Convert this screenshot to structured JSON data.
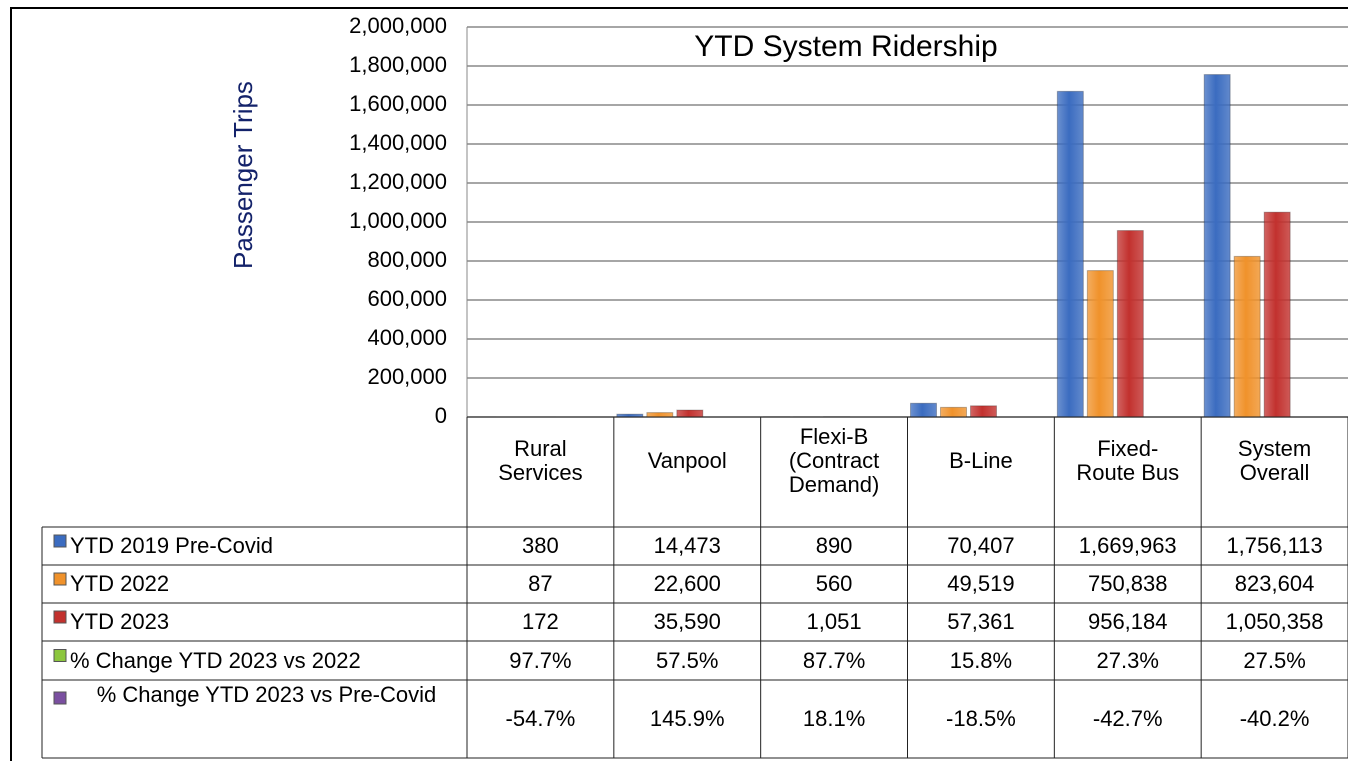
{
  "chart_data": {
    "type": "bar",
    "title": "YTD System Ridership",
    "y_label": "Passenger  Trips",
    "categories": [
      "Rural Services",
      "Vanpool",
      "Flexi-B (Contract Demand)",
      "B-Line",
      "Fixed-Route Bus",
      "System Overall"
    ],
    "series": [
      {
        "name": "YTD 2019 Pre-Covid",
        "color": "#3b6cc0",
        "values": [
          380,
          14473,
          890,
          70407,
          1669963,
          1756113
        ],
        "value_labels": [
          "380",
          "14,473",
          "890",
          "70,407",
          "1,669,963",
          "1,756,113"
        ]
      },
      {
        "name": "YTD 2022",
        "color": "#f0922b",
        "values": [
          87,
          22600,
          560,
          49519,
          750838,
          823604
        ],
        "value_labels": [
          "87",
          "22,600",
          "560",
          "49,519",
          "750,838",
          "823,604"
        ]
      },
      {
        "name": "YTD 2023",
        "color": "#c2312e",
        "values": [
          172,
          35590,
          1051,
          57361,
          956184,
          1050358
        ],
        "value_labels": [
          "172",
          "35,590",
          "1,051",
          "57,361",
          "956,184",
          "1,050,358"
        ]
      }
    ],
    "table_rows": [
      {
        "name": "% Change YTD 2023 vs 2022",
        "color": "#8cc63e",
        "values": [
          97.7,
          57.5,
          87.7,
          15.8,
          27.3,
          27.5
        ],
        "value_labels": [
          "97.7%",
          "57.5%",
          "87.7%",
          "15.8%",
          "27.3%",
          "27.5%"
        ]
      },
      {
        "name": "% Change YTD 2023 vs Pre-Covid",
        "color": "#7a4fa0",
        "values": [
          -54.7,
          145.9,
          18.1,
          -18.5,
          -42.7,
          -40.2
        ],
        "value_labels": [
          "-54.7%",
          "145.9%",
          "18.1%",
          "-18.5%",
          "-42.7%",
          "-40.2%"
        ]
      }
    ],
    "ylim": [
      0,
      2000000
    ],
    "yticks": [
      0,
      {
        "value": 200000,
        "label": "200,000"
      },
      {
        "value": 400000,
        "label": "400,000"
      },
      {
        "value": 600000,
        "label": "600,000"
      },
      {
        "value": 800000,
        "label": "800,000"
      },
      {
        "value": 1000000,
        "label": "1,000,000"
      },
      {
        "value": 1200000,
        "label": "1,200,000"
      },
      {
        "value": 1400000,
        "label": "1,400,000"
      },
      {
        "value": 1600000,
        "label": "1,600,000"
      },
      {
        "value": 1800000,
        "label": "1,800,000"
      },
      {
        "value": 2000000,
        "label": "2,000,000"
      }
    ],
    "grid": true
  }
}
